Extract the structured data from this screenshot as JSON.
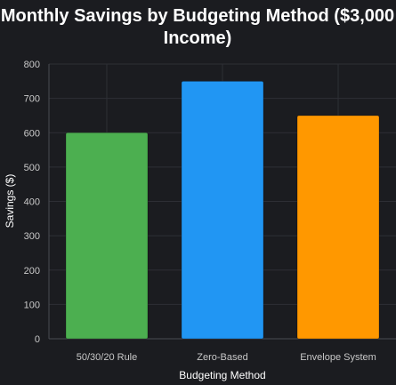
{
  "chart_data": {
    "type": "bar",
    "title_lines": [
      "Monthly Savings by Budgeting Method ($3,000",
      "Income)"
    ],
    "categories": [
      "50/30/20 Rule",
      "Zero-Based",
      "Envelope System"
    ],
    "values": [
      600,
      750,
      650
    ],
    "colors": [
      "#4caf50",
      "#2196f3",
      "#ff9800"
    ],
    "xlabel": "Budgeting Method",
    "ylabel": "Savings ($)",
    "ylim": [
      0,
      800
    ],
    "yticks": [
      "0",
      "100",
      "200",
      "300",
      "400",
      "500",
      "600",
      "700",
      "800"
    ],
    "grid": true,
    "legend": "none"
  }
}
